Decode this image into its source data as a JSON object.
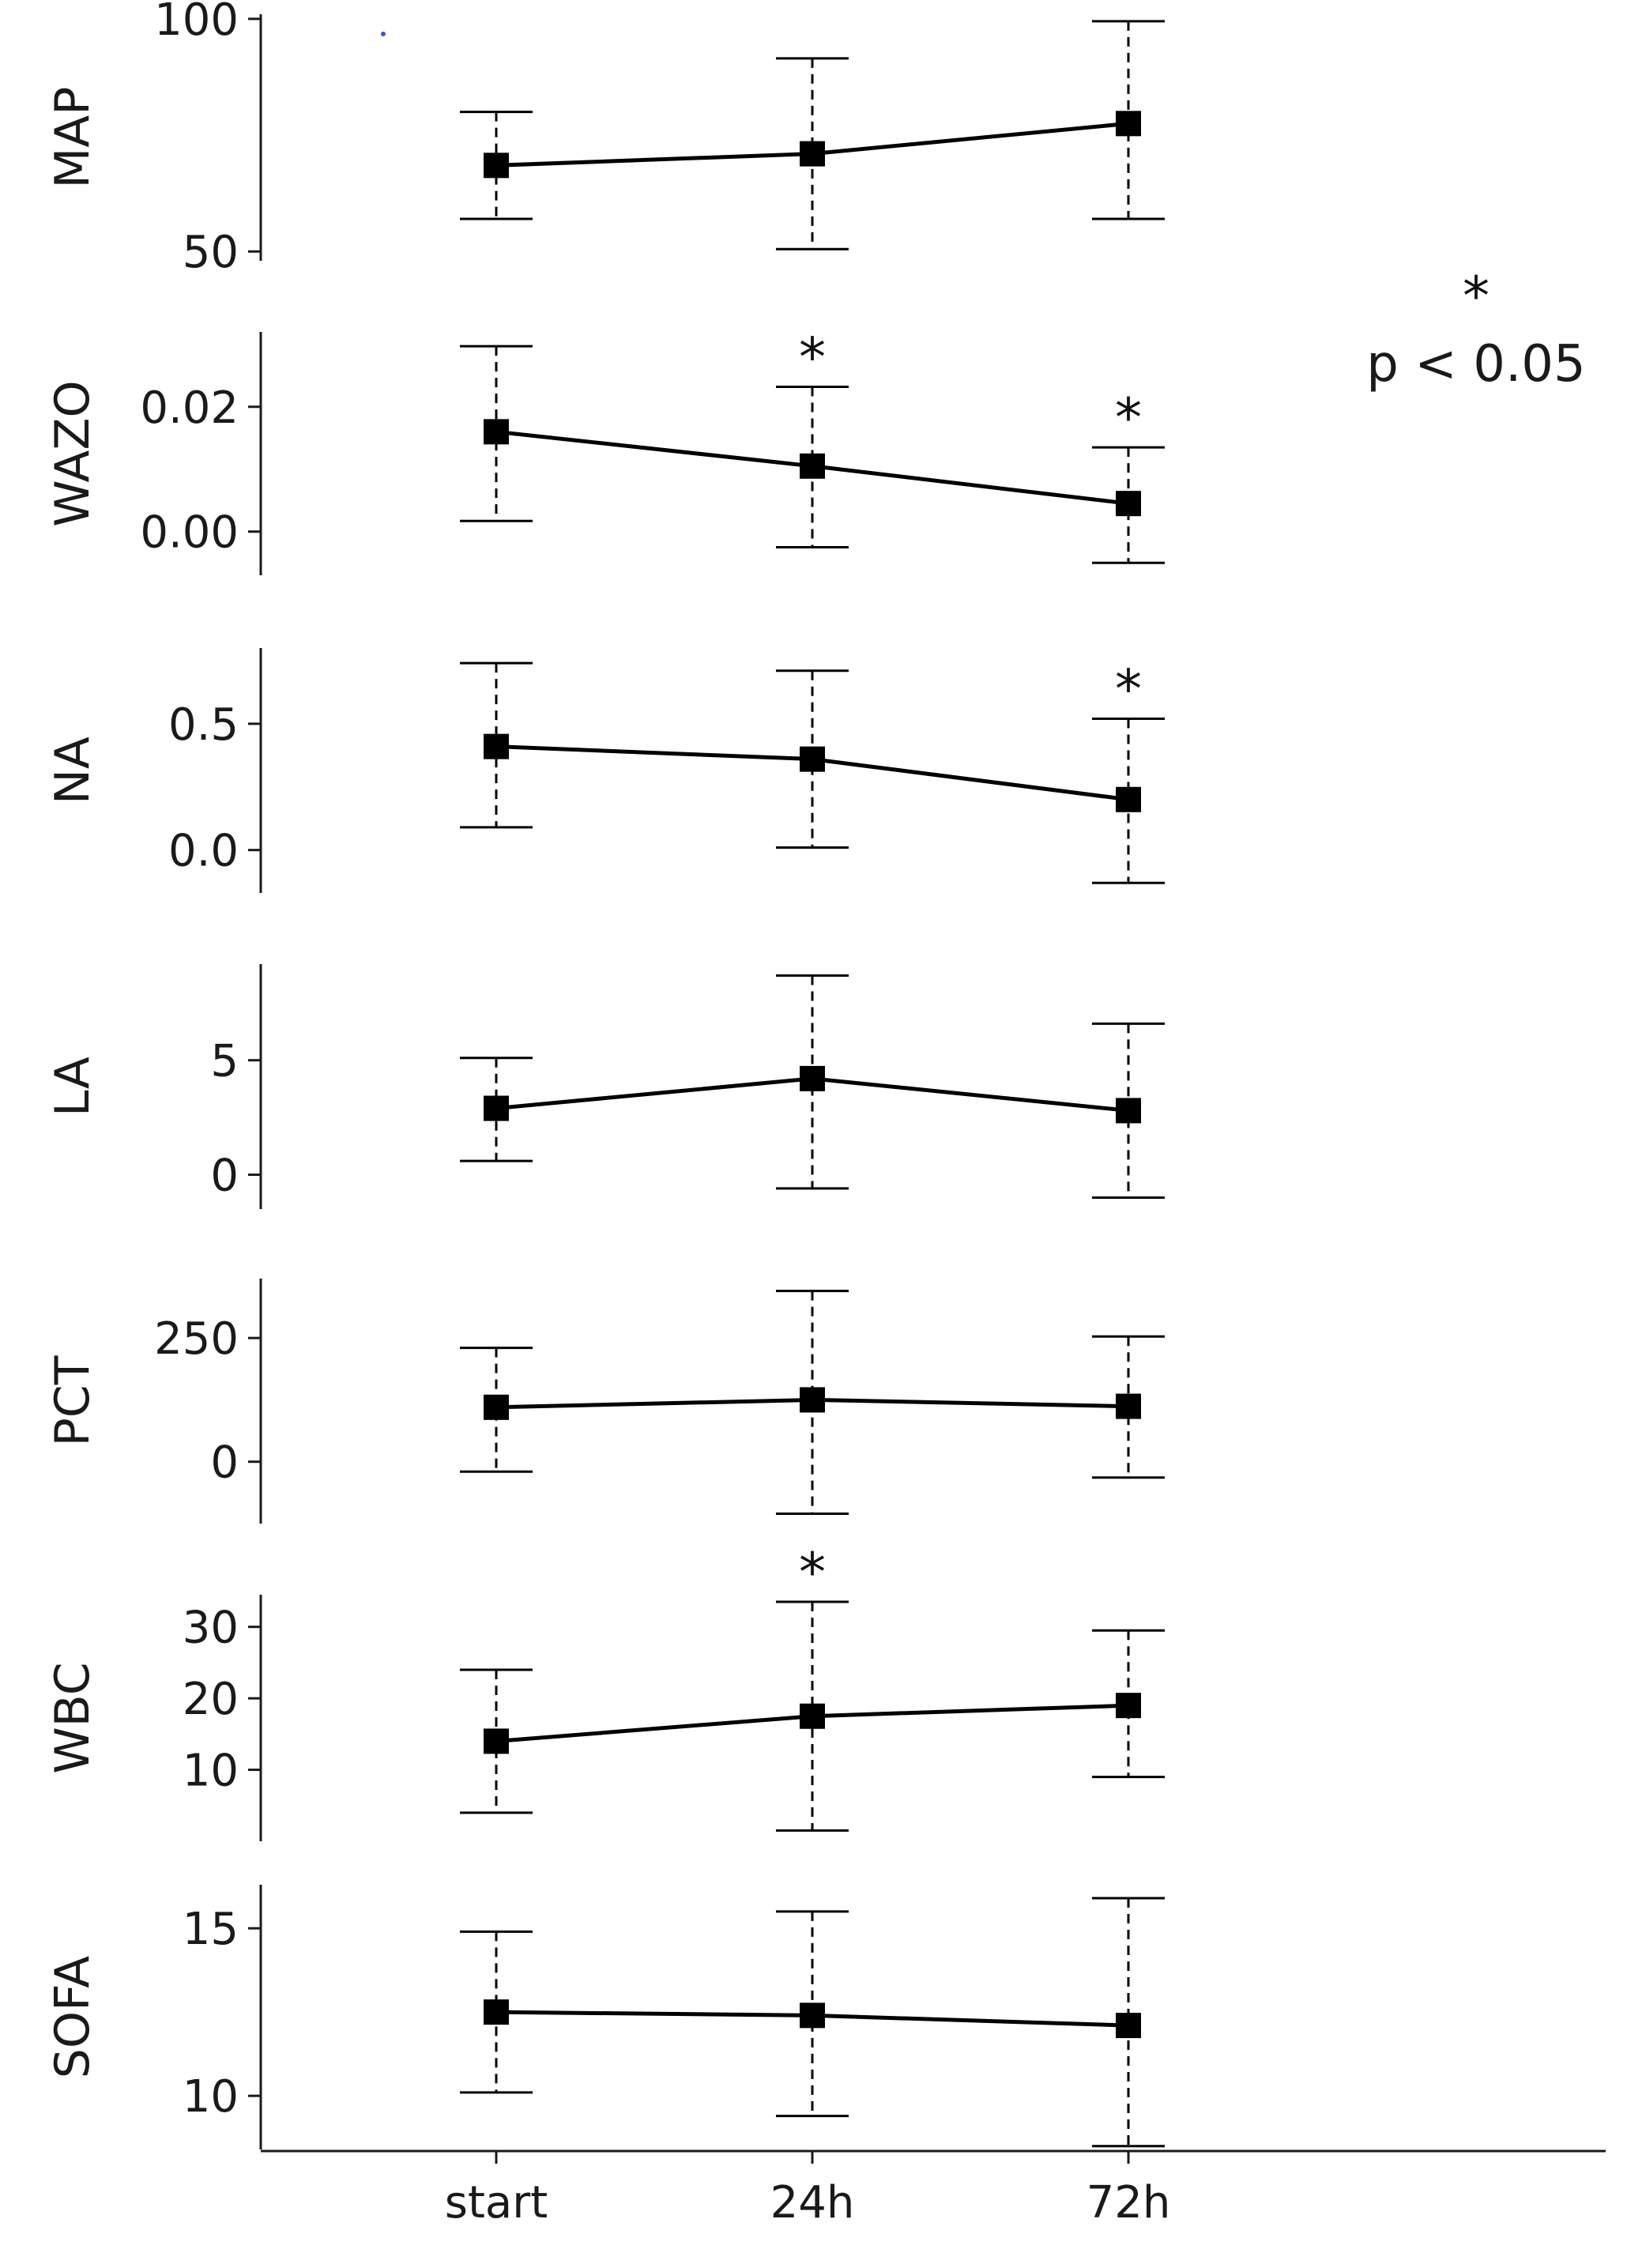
{
  "chart_data": {
    "type": "line",
    "categories": [
      "start",
      "24h",
      "72h"
    ],
    "xlabel": "",
    "legend": {
      "symbol": "*",
      "text": "p < 0.05",
      "placement": "top-right"
    },
    "colors": {
      "line": "#000000",
      "marker": "#000000",
      "axis": "#1a1a1a",
      "stray_dot": "#3a55d6"
    },
    "panels": [
      {
        "name": "MAP",
        "ylabel": "MAP",
        "ylim": [
          48,
          101
        ],
        "yticks": [
          50,
          100
        ],
        "ytick_labels": [
          "50",
          "100"
        ],
        "means": [
          68.5,
          71,
          77.5
        ],
        "lower": [
          57,
          50.5,
          57
        ],
        "upper": [
          80,
          91.5,
          99.5
        ],
        "significant": [
          false,
          false,
          false
        ]
      },
      {
        "name": "WAZO",
        "ylabel": "WAZO",
        "ylim": [
          -0.007,
          0.032
        ],
        "yticks": [
          0.0,
          0.02
        ],
        "ytick_labels": [
          "0.00",
          "0.02"
        ],
        "means": [
          0.016,
          0.0105,
          0.0045
        ],
        "lower": [
          0.0017,
          -0.0025,
          -0.005
        ],
        "upper": [
          0.0297,
          0.0232,
          0.0135
        ],
        "significant": [
          false,
          true,
          true
        ]
      },
      {
        "name": "NA",
        "ylabel": "NA",
        "ylim": [
          -0.17,
          0.8
        ],
        "yticks": [
          0.0,
          0.5
        ],
        "ytick_labels": [
          "0.0",
          "0.5"
        ],
        "means": [
          0.41,
          0.36,
          0.2
        ],
        "lower": [
          0.09,
          0.01,
          -0.13
        ],
        "upper": [
          0.74,
          0.71,
          0.52
        ],
        "significant": [
          false,
          false,
          true
        ]
      },
      {
        "name": "LA",
        "ylabel": "LA",
        "ylim": [
          -1.5,
          9.2
        ],
        "yticks": [
          0,
          5
        ],
        "ytick_labels": [
          "0",
          "5"
        ],
        "means": [
          2.9,
          4.2,
          2.8
        ],
        "lower": [
          0.6,
          -0.6,
          -1.0
        ],
        "upper": [
          5.1,
          8.7,
          6.6
        ],
        "significant": [
          false,
          false,
          false
        ]
      },
      {
        "name": "PCT",
        "ylabel": "PCT",
        "ylim": [
          -125,
          370
        ],
        "yticks": [
          0,
          250
        ],
        "ytick_labels": [
          "0",
          "250"
        ],
        "means": [
          110,
          125,
          112
        ],
        "lower": [
          -20,
          -105,
          -32
        ],
        "upper": [
          230,
          345,
          253
        ],
        "significant": [
          false,
          false,
          false
        ]
      },
      {
        "name": "WBC",
        "ylabel": "WBC",
        "ylim": [
          0,
          34.5
        ],
        "yticks": [
          10,
          20,
          30
        ],
        "ytick_labels": [
          "10",
          "20",
          "30"
        ],
        "means": [
          14,
          17.5,
          19
        ],
        "lower": [
          4,
          1.5,
          9
        ],
        "upper": [
          24,
          33.5,
          29.5
        ],
        "significant": [
          false,
          true,
          false
        ]
      },
      {
        "name": "SOFA",
        "ylabel": "SOFA",
        "ylim": [
          8.4,
          16.3
        ],
        "yticks": [
          10,
          15
        ],
        "ytick_labels": [
          "10",
          "15"
        ],
        "means": [
          12.5,
          12.4,
          12.1
        ],
        "lower": [
          10.1,
          9.4,
          8.5
        ],
        "upper": [
          14.9,
          15.5,
          15.9
        ],
        "significant": [
          false,
          false,
          false
        ]
      }
    ]
  }
}
